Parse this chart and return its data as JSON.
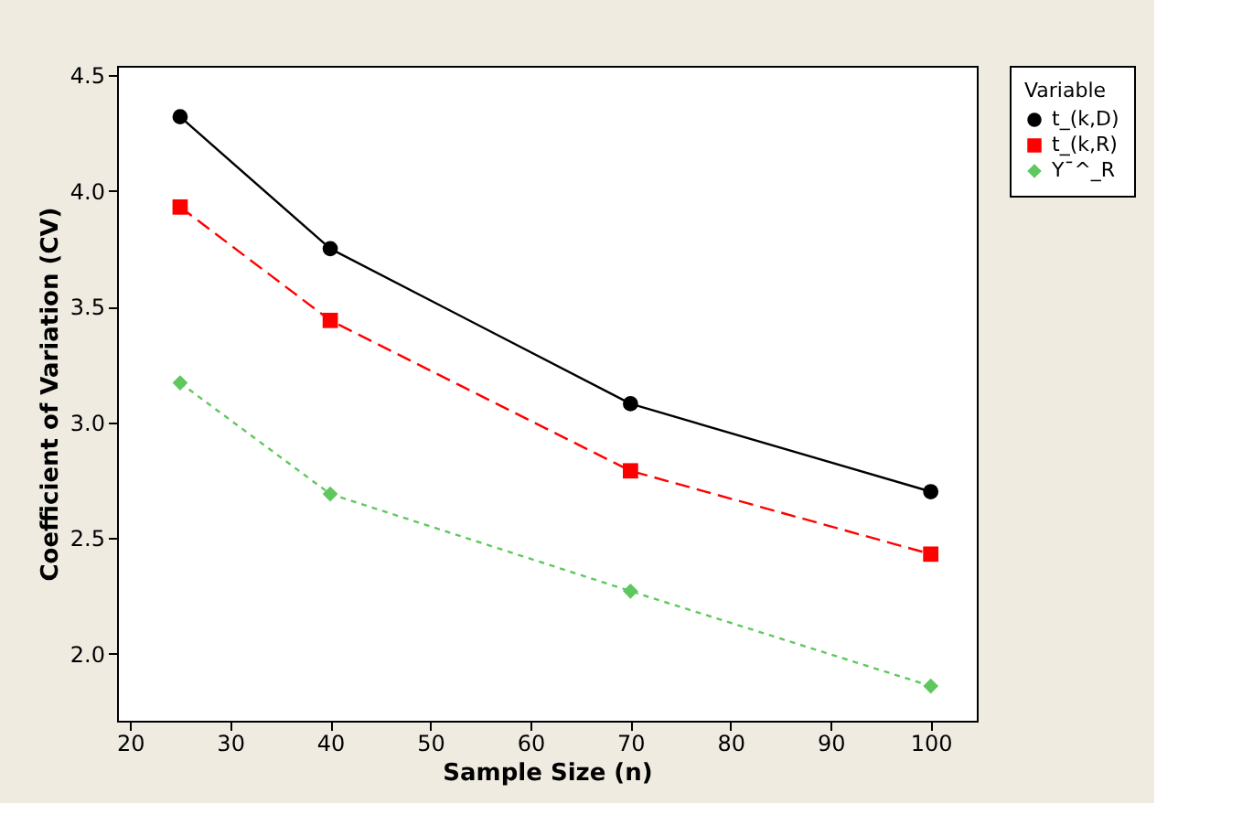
{
  "chart_data": {
    "type": "line",
    "xlabel": "Sample Size (n)",
    "ylabel": "Coefficient of Variation (CV)",
    "legend_title": "Variable",
    "legend": "top right",
    "grid": false,
    "x": [
      25,
      40,
      70,
      100
    ],
    "series": [
      {
        "name": "t_(k,D)",
        "color": "#000000",
        "values": [
          4.32,
          3.75,
          3.08,
          2.7
        ],
        "marker": "circle",
        "line_style": "solid"
      },
      {
        "name": "t_(k,R)",
        "color": "#ff0000",
        "values": [
          3.93,
          3.44,
          2.79,
          2.43
        ],
        "marker": "square",
        "line_style": "dashed"
      },
      {
        "name": "Y¯^_R",
        "color": "#5ec85e",
        "values": [
          3.17,
          2.69,
          2.27,
          1.86
        ],
        "marker": "diamond",
        "line_style": "dotted"
      }
    ],
    "xlim": [
      18.7,
      104.6
    ],
    "xticks": [
      20,
      30,
      40,
      50,
      60,
      70,
      80,
      90,
      100
    ],
    "ylim": [
      1.71,
      4.54
    ],
    "yticks": [
      {
        "value": 2,
        "label": "2.0"
      },
      2.5,
      {
        "value": 3,
        "label": "3.0"
      },
      3.5,
      {
        "value": 4,
        "label": "4.0"
      },
      4.5
    ]
  }
}
